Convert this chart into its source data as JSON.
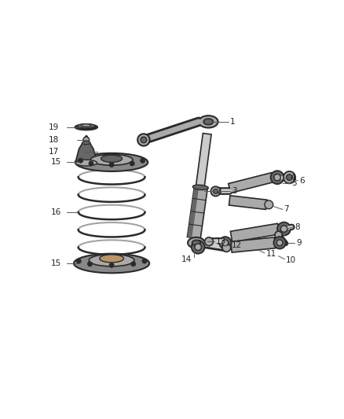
{
  "bg_color": "#ffffff",
  "fig_w": 4.38,
  "fig_h": 5.33,
  "dpi": 100,
  "colors": {
    "dark": "#2a2a2a",
    "mid": "#666666",
    "light": "#aaaaaa",
    "vlight": "#cccccc",
    "tan": "#b8956a",
    "outline": "#333333",
    "callout": "#555555"
  }
}
